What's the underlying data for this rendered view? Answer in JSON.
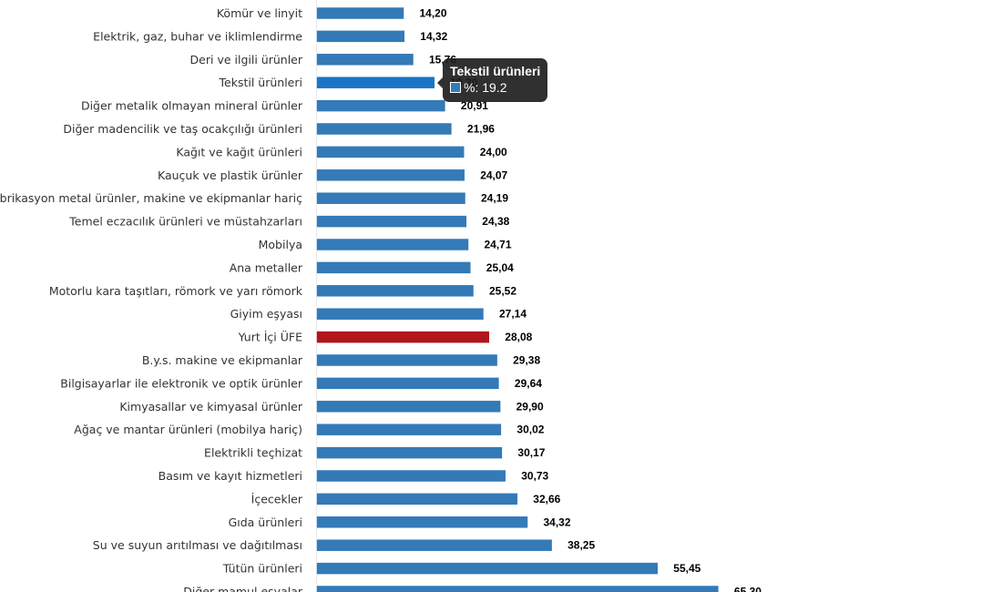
{
  "chart_data": {
    "type": "bar",
    "orientation": "horizontal",
    "title": "",
    "xlabel": "",
    "ylabel": "",
    "xlim": [
      0,
      65.3
    ],
    "grid": false,
    "legend": "none",
    "series_name": "%",
    "colors": {
      "default": "#337ab7",
      "highlight": "#b0161b",
      "hovered": "#1a75c4",
      "axis": "#e6e9ef"
    },
    "categories": [
      "Kömür ve linyit",
      "Elektrik, gaz, buhar ve iklimlendirme",
      "Deri ve ilgili ürünler",
      "Tekstil ürünleri",
      "Diğer metalik olmayan mineral ürünler",
      "Diğer madencilik ve taş ocakçılığı ürünleri",
      "Kağıt ve kağıt ürünleri",
      "Kauçuk ve plastik ürünler",
      "Fabrikasyon metal ürünler, makine ve ekipmanlar hariç",
      "Temel eczacılık ürünleri ve müstahzarları",
      "Mobilya",
      "Ana metaller",
      "Motorlu kara taşıtları, römork ve yarı römork",
      "Giyim eşyası",
      "Yurt İçi ÜFE",
      "B.y.s. makine ve ekipmanlar",
      "Bilgisayarlar ile elektronik ve optik ürünler",
      "Kimyasallar ve kimyasal ürünler",
      "Ağaç ve mantar ürünleri (mobilya hariç)",
      "Elektrikli teçhizat",
      "Basım ve kayıt hizmetleri",
      "İçecekler",
      "Gıda ürünleri",
      "Su ve suyun arıtılması ve dağıtılması",
      "Tütün ürünleri",
      "Diğer mamul eşyalar"
    ],
    "values": [
      14.2,
      14.32,
      15.76,
      19.2,
      20.91,
      21.96,
      24.0,
      24.07,
      24.19,
      24.38,
      24.71,
      25.04,
      25.52,
      27.14,
      28.08,
      29.38,
      29.64,
      29.9,
      30.02,
      30.17,
      30.73,
      32.66,
      34.32,
      38.25,
      55.45,
      65.3
    ],
    "value_labels": [
      "14,20",
      "14,32",
      "15,76",
      "19,20",
      "20,91",
      "21,96",
      "24,00",
      "24,07",
      "24,19",
      "24,38",
      "24,71",
      "25,04",
      "25,52",
      "27,14",
      "28,08",
      "29,38",
      "29,64",
      "29,90",
      "30,02",
      "30,17",
      "30,73",
      "32,66",
      "34,32",
      "38,25",
      "55,45",
      "65,30"
    ],
    "highlight_index": 14,
    "hovered_index": 3
  },
  "tooltip": {
    "title": "Tekstil ürünleri",
    "series_label": "%: 19.2"
  }
}
